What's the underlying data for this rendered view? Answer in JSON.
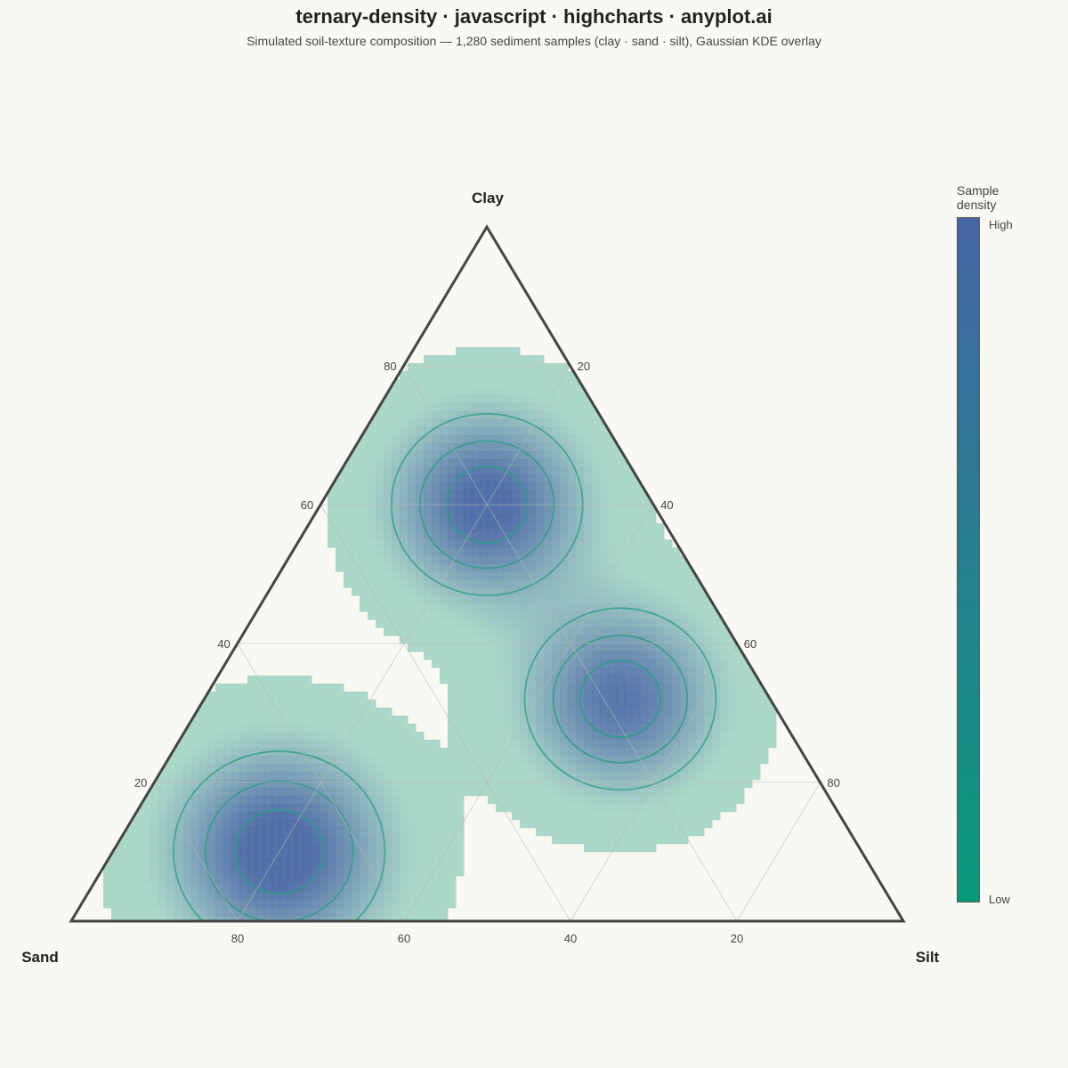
{
  "title": "ternary-density · javascript · highcharts · anyplot.ai",
  "subtitle": "Simulated soil-texture composition — 1,280 sediment samples (clay · sand · silt), Gaussian KDE overlay",
  "chart_data": {
    "type": "heatmap",
    "subtype": "ternary-density",
    "axes": {
      "top": "Clay",
      "left": "Sand",
      "right": "Silt"
    },
    "ticks": [
      20,
      40,
      60,
      80
    ],
    "range": [
      0,
      100
    ],
    "grid": true,
    "legend": {
      "title": "Sample density",
      "high_label": "High",
      "low_label": "Low",
      "placement": "right",
      "color_high": "#4565a3",
      "color_low": "#07997a"
    },
    "density_fill_light": "#a5d5c5",
    "contour_color": "#2a9d85",
    "clusters": [
      {
        "clay": 60,
        "sand": 20,
        "silt": 20,
        "spread": 9.5,
        "weight": 1.0
      },
      {
        "clay": 10,
        "sand": 70,
        "silt": 20,
        "spread": 10.5,
        "weight": 1.05
      },
      {
        "clay": 32,
        "sand": 18,
        "silt": 50,
        "spread": 9.5,
        "weight": 0.9
      }
    ],
    "samples": 1280
  }
}
